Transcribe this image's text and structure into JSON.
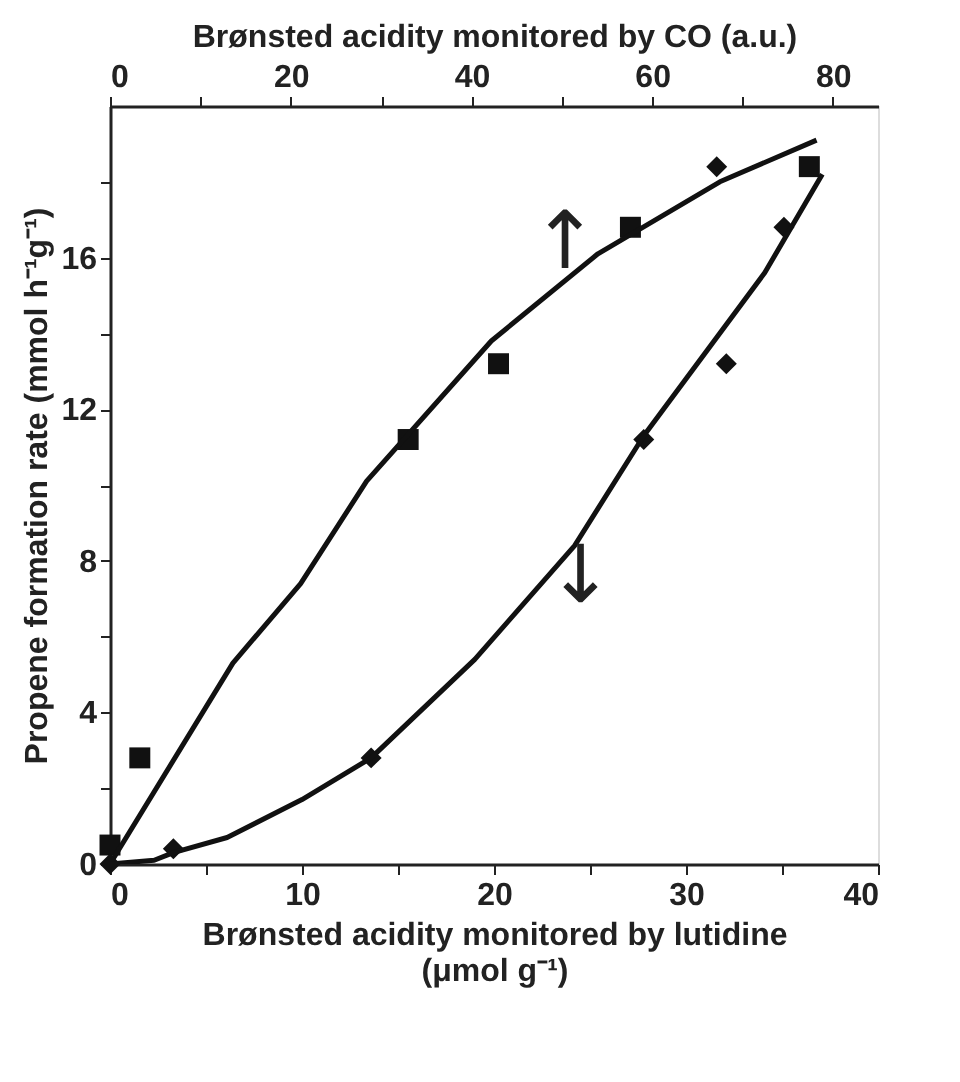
{
  "chart_data": {
    "type": "scatter",
    "xlabel": "Brønsted acidity monitored by lutidine (μmol g⁻¹)",
    "x2label": "Brønsted acidity monitored by CO (a.u.)",
    "ylabel": "Propene formation rate (mmol h⁻¹g⁻¹)",
    "xlim": [
      0,
      40
    ],
    "xticks": [
      0,
      {
        "value": 5,
        "label": null
      },
      10,
      {
        "value": 15,
        "label": null
      },
      20,
      {
        "value": 25,
        "label": null
      },
      30,
      {
        "value": 35,
        "label": null
      },
      40
    ],
    "x2lim": [
      0,
      85
    ],
    "x2ticks": [
      0,
      {
        "value": 10,
        "label": null
      },
      20,
      {
        "value": 30,
        "label": null
      },
      40,
      {
        "value": 50,
        "label": null
      },
      60,
      {
        "value": 70,
        "label": null
      },
      80
    ],
    "ylim": [
      0,
      20
    ],
    "yticks": [
      0,
      {
        "value": 2,
        "label": null
      },
      4,
      {
        "value": 6,
        "label": null
      },
      8,
      {
        "value": 10,
        "label": null
      },
      12,
      {
        "value": 14,
        "label": null
      },
      16,
      {
        "value": 18,
        "label": null
      }
    ],
    "grid": false,
    "series": [
      {
        "axis": "x2",
        "marker": "square",
        "color": "#111111",
        "x": [
          0,
          3.3,
          33,
          43,
          57.6,
          77.4
        ],
        "values": [
          0.5,
          2.8,
          11.2,
          13.2,
          16.8,
          18.4
        ]
      },
      {
        "type": "line",
        "axis": "x2",
        "marker": "none",
        "line_style": "solid",
        "color": "#111111",
        "x": [
          0,
          13.6,
          21.1,
          28.4,
          42.2,
          54,
          67.5,
          78.2
        ],
        "values": [
          0,
          5.3,
          7.4,
          10.1,
          13.8,
          16.1,
          18.0,
          19.1
        ]
      },
      {
        "marker": "diamond",
        "color": "#111111",
        "x": [
          0,
          3.3,
          13.6,
          27.8,
          32.1,
          35.1,
          31.6
        ],
        "values": [
          0,
          0.4,
          2.8,
          11.2,
          13.2,
          16.8,
          18.4
        ]
      },
      {
        "type": "line",
        "marker": "none",
        "line_style": "solid",
        "color": "#111111",
        "x": [
          0,
          2.3,
          3.3,
          6.1,
          10,
          13.6,
          19,
          24.2,
          27.8,
          34.1,
          37.1
        ],
        "values": [
          0,
          0.1,
          0.3,
          0.7,
          1.7,
          2.8,
          5.4,
          8.4,
          11.3,
          15.6,
          18.2
        ]
      }
    ],
    "annotations": [
      {
        "text": "↑",
        "x": 23.7,
        "y": 15.3
      },
      {
        "text": "↓",
        "x": 24.5,
        "y": 8.6
      }
    ]
  }
}
